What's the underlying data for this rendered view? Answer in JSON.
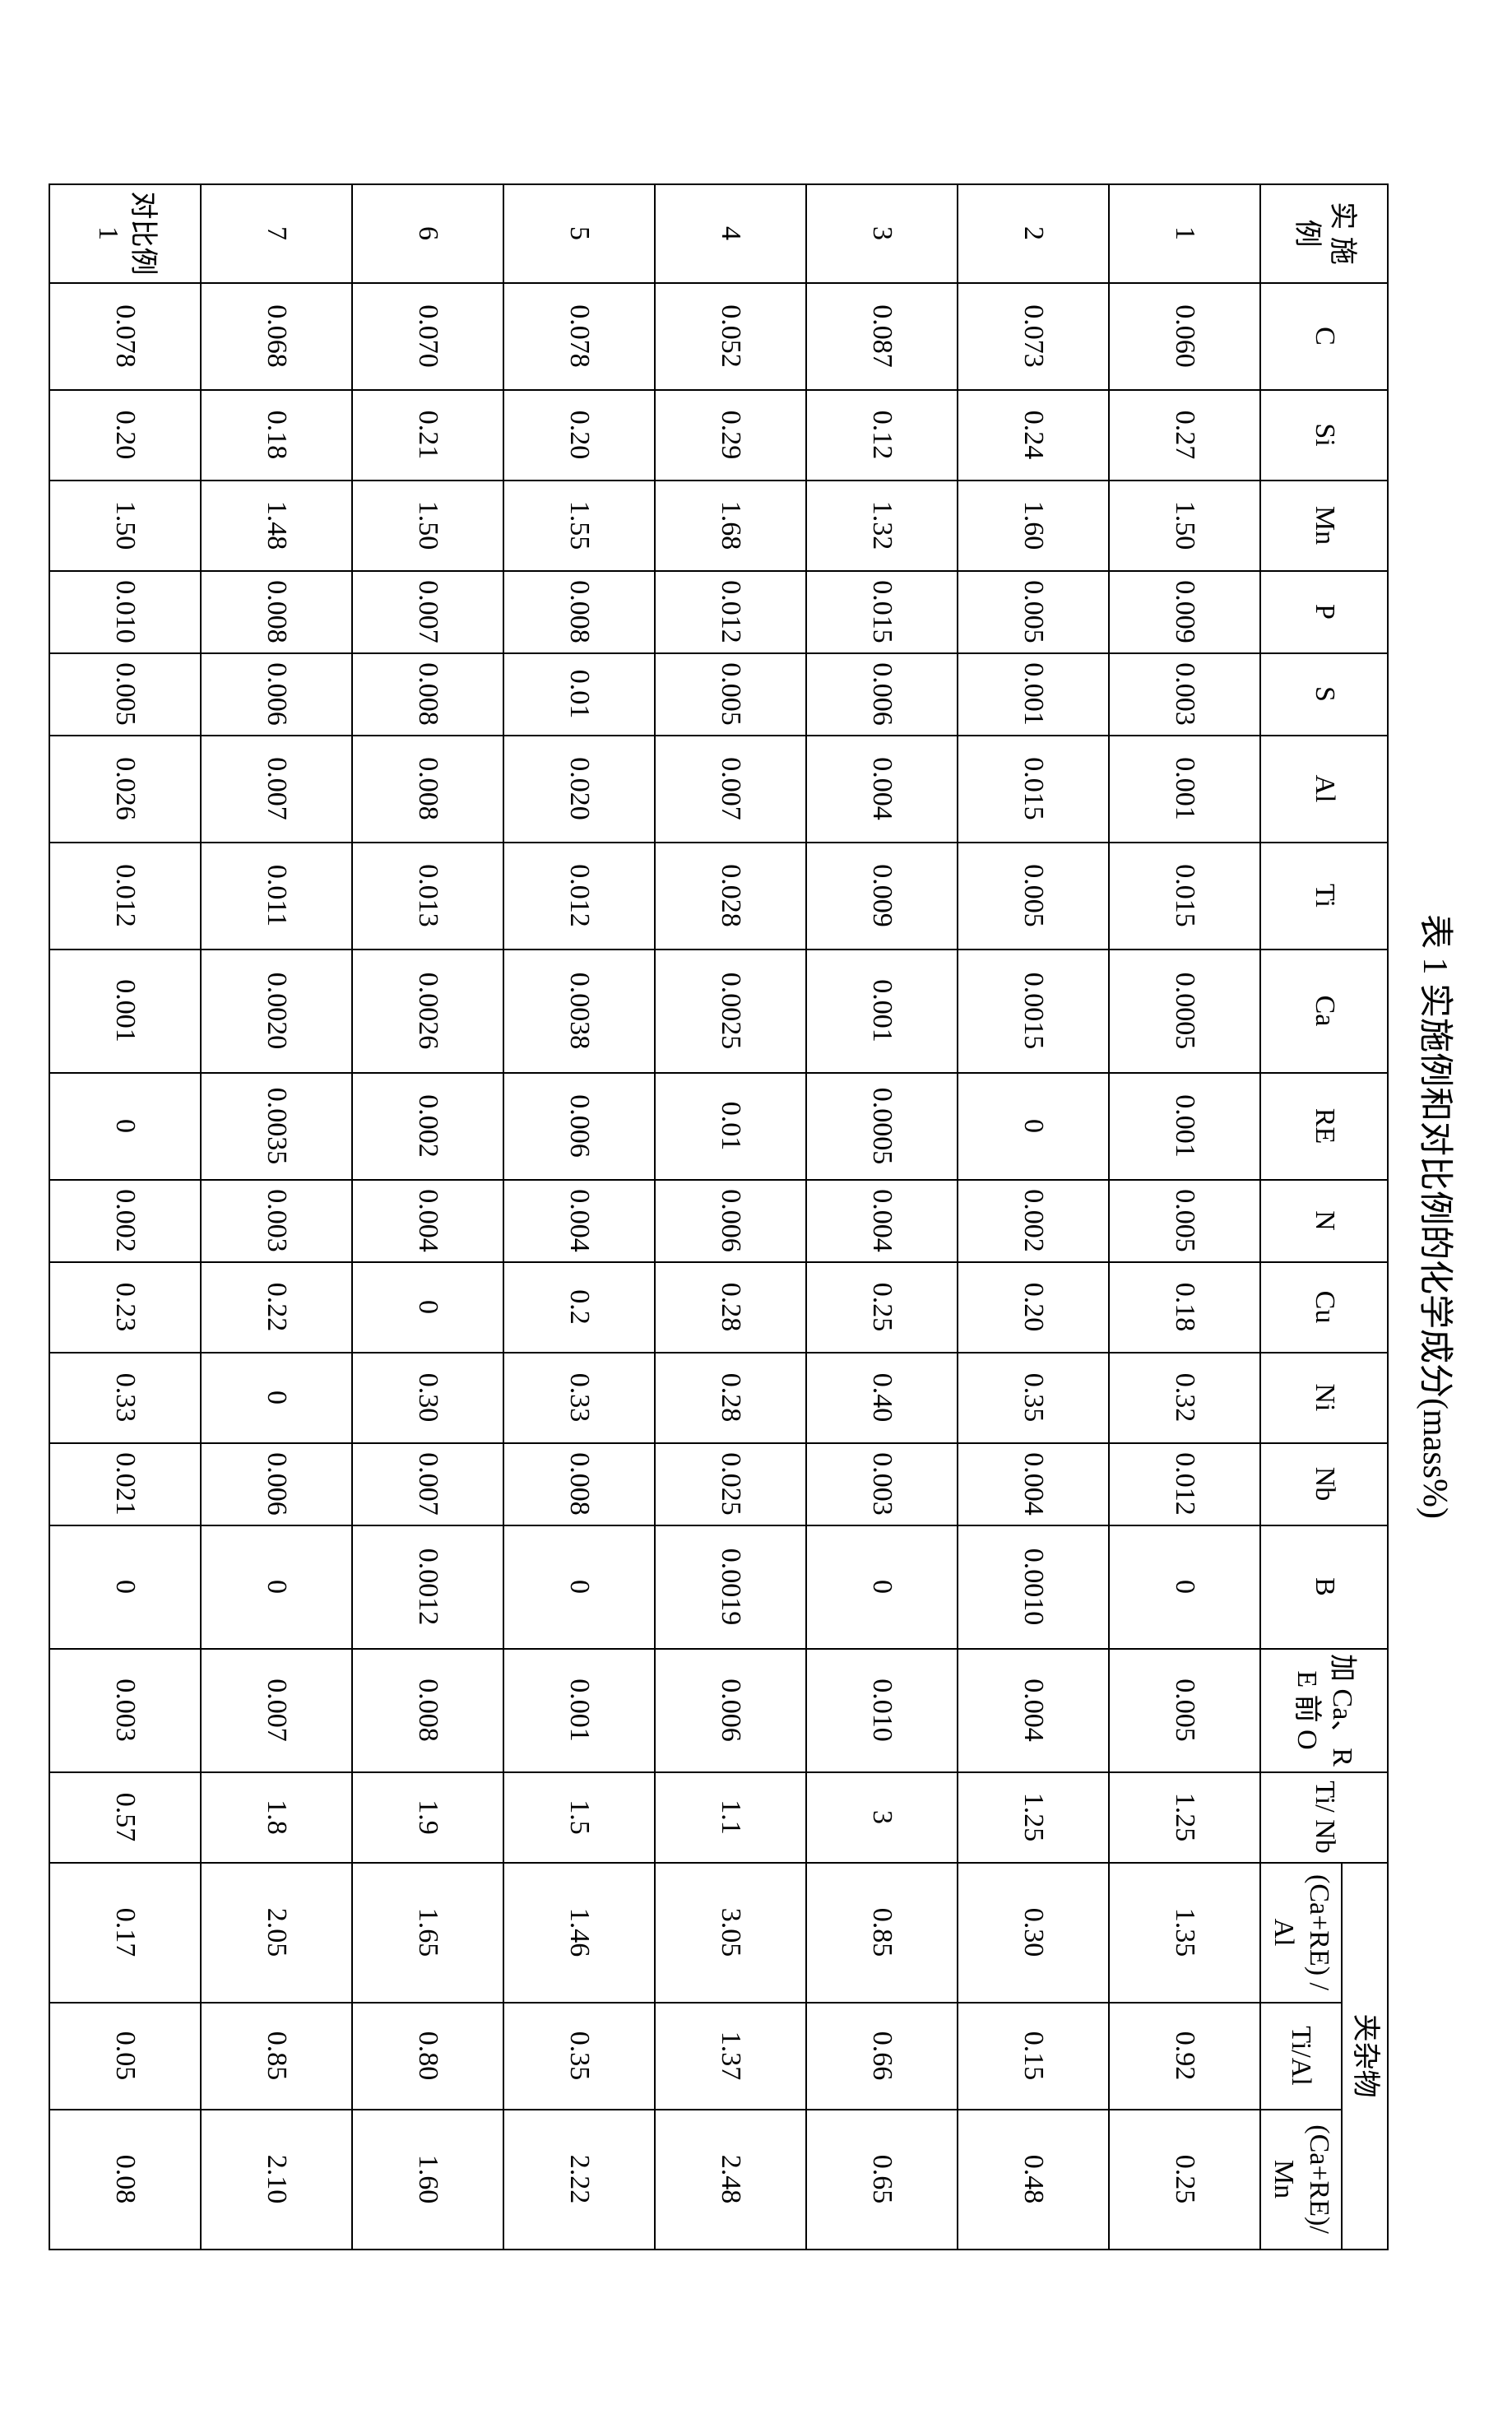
{
  "caption": "表 1  实施例和对比例的化学成分(mass%)",
  "headers": {
    "label": "实 施 例",
    "c": "C",
    "si": "Si",
    "mn": "Mn",
    "p": "P",
    "s": "S",
    "al": "Al",
    "ti": "Ti",
    "ca": "Ca",
    "re": "RE",
    "n": "N",
    "cu": "Cu",
    "ni": "Ni",
    "nb": "Nb",
    "b": "B",
    "o": "加 Ca、RE 前 O",
    "tinb": "Ti/ Nb",
    "inclusion_group": "夹杂物",
    "care_al": "(Ca+RE) /Al",
    "ti_al": "Ti/Al",
    "care_mn": "(Ca+RE)/Mn"
  },
  "rows": [
    {
      "label": "1",
      "c": "0.060",
      "si": "0.27",
      "mn": "1.50",
      "p": "0.009",
      "s": "0.003",
      "al": "0.001",
      "ti": "0.015",
      "ca": "0.0005",
      "re": "0.001",
      "n": "0.005",
      "cu": "0.18",
      "ni": "0.32",
      "nb": "0.012",
      "b": "0",
      "o": "0.005",
      "tinb": "1.25",
      "care_al": "1.35",
      "ti_al": "0.92",
      "care_mn": "0.25"
    },
    {
      "label": "2",
      "c": "0.073",
      "si": "0.24",
      "mn": "1.60",
      "p": "0.005",
      "s": "0.001",
      "al": "0.015",
      "ti": "0.005",
      "ca": "0.0015",
      "re": "0",
      "n": "0.002",
      "cu": "0.20",
      "ni": "0.35",
      "nb": "0.004",
      "b": "0.0010",
      "o": "0.004",
      "tinb": "1.25",
      "care_al": "0.30",
      "ti_al": "0.15",
      "care_mn": "0.48"
    },
    {
      "label": "3",
      "c": "0.087",
      "si": "0.12",
      "mn": "1.32",
      "p": "0.015",
      "s": "0.006",
      "al": "0.004",
      "ti": "0.009",
      "ca": "0.001",
      "re": "0.0005",
      "n": "0.004",
      "cu": "0.25",
      "ni": "0.40",
      "nb": "0.003",
      "b": "0",
      "o": "0.010",
      "tinb": "3",
      "care_al": "0.85",
      "ti_al": "0.66",
      "care_mn": "0.65"
    },
    {
      "label": "4",
      "c": "0.052",
      "si": "0.29",
      "mn": "1.68",
      "p": "0.012",
      "s": "0.005",
      "al": "0.007",
      "ti": "0.028",
      "ca": "0.0025",
      "re": "0.01",
      "n": "0.006",
      "cu": "0.28",
      "ni": "0.28",
      "nb": "0.025",
      "b": "0.0019",
      "o": "0.006",
      "tinb": "1.1",
      "care_al": "3.05",
      "ti_al": "1.37",
      "care_mn": "2.48"
    },
    {
      "label": "5",
      "c": "0.078",
      "si": "0.20",
      "mn": "1.55",
      "p": "0.008",
      "s": "0.01",
      "al": "0.020",
      "ti": "0.012",
      "ca": "0.0038",
      "re": "0.006",
      "n": "0.004",
      "cu": "0.2",
      "ni": "0.33",
      "nb": "0.008",
      "b": "0",
      "o": "0.001",
      "tinb": "1.5",
      "care_al": "1.46",
      "ti_al": "0.35",
      "care_mn": "2.22"
    },
    {
      "label": "6",
      "c": "0.070",
      "si": "0.21",
      "mn": "1.50",
      "p": "0.007",
      "s": "0.008",
      "al": "0.008",
      "ti": "0.013",
      "ca": "0.0026",
      "re": "0.002",
      "n": "0.004",
      "cu": "0",
      "ni": "0.30",
      "nb": "0.007",
      "b": "0.0012",
      "o": "0.008",
      "tinb": "1.9",
      "care_al": "1.65",
      "ti_al": "0.80",
      "care_mn": "1.60"
    },
    {
      "label": "7",
      "c": "0.068",
      "si": "0.18",
      "mn": "1.48",
      "p": "0.008",
      "s": "0.006",
      "al": "0.007",
      "ti": "0.011",
      "ca": "0.0020",
      "re": "0.0035",
      "n": "0.003",
      "cu": "0.22",
      "ni": "0",
      "nb": "0.006",
      "b": "0",
      "o": "0.007",
      "tinb": "1.8",
      "care_al": "2.05",
      "ti_al": "0.85",
      "care_mn": "2.10"
    },
    {
      "label": "对比例 1",
      "c": "0.078",
      "si": "0.20",
      "mn": "1.50",
      "p": "0.010",
      "s": "0.005",
      "al": "0.026",
      "ti": "0.012",
      "ca": "0.001",
      "re": "0",
      "n": "0.002",
      "cu": "0.23",
      "ni": "0.33",
      "nb": "0.021",
      "b": "0",
      "o": "0.003",
      "tinb": "0.57",
      "care_al": "0.17",
      "ti_al": "0.05",
      "care_mn": "0.08"
    }
  ]
}
